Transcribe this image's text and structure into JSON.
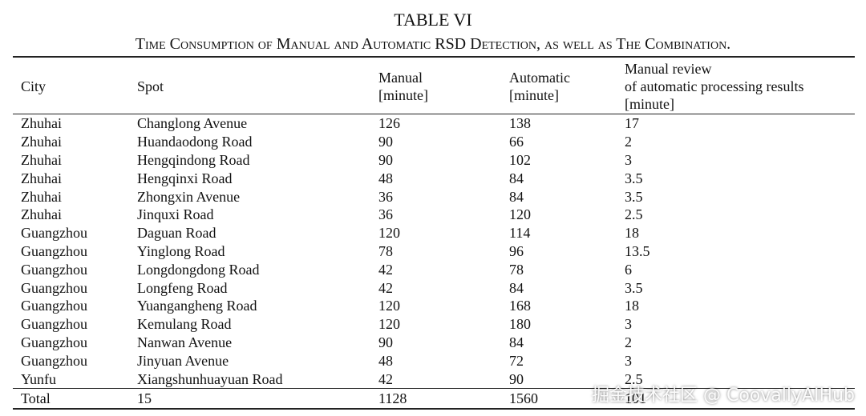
{
  "header": {
    "label": "TABLE VI",
    "caption": "Time Consumption of Manual and Automatic RSD Detection, as well as The Combination."
  },
  "table": {
    "columns": [
      "City",
      "Spot",
      "Manual\n[minute]",
      "Automatic\n[minute]",
      "Manual review\nof automatic processing results\n[minute]"
    ],
    "rows": [
      [
        "Zhuhai",
        "Changlong Avenue",
        126,
        138,
        17
      ],
      [
        "Zhuhai",
        "Huandaodong Road",
        90,
        66,
        2
      ],
      [
        "Zhuhai",
        "Hengqindong Road",
        90,
        102,
        3
      ],
      [
        "Zhuhai",
        "Hengqinxi Road",
        48,
        84,
        3.5
      ],
      [
        "Zhuhai",
        "Zhongxin Avenue",
        36,
        84,
        3.5
      ],
      [
        "Zhuhai",
        "Jinquxi Road",
        36,
        120,
        2.5
      ],
      [
        "Guangzhou",
        "Daguan Road",
        120,
        114,
        18
      ],
      [
        "Guangzhou",
        "Yinglong Road",
        78,
        96,
        13.5
      ],
      [
        "Guangzhou",
        "Longdongdong Road",
        42,
        78,
        6
      ],
      [
        "Guangzhou",
        "Longfeng Road",
        42,
        84,
        3.5
      ],
      [
        "Guangzhou",
        "Yuangangheng Road",
        120,
        168,
        18
      ],
      [
        "Guangzhou",
        "Kemulang Road",
        120,
        180,
        3
      ],
      [
        "Guangzhou",
        "Nanwan Avenue",
        90,
        84,
        2
      ],
      [
        "Guangzhou",
        "Jinyuan Avenue",
        48,
        72,
        3
      ],
      [
        "Yunfu",
        "Xiangshunhuayuan Road",
        42,
        90,
        2.5
      ]
    ],
    "total": [
      "Total",
      15,
      1128,
      1560,
      101
    ]
  },
  "watermark": "掘金技术社区 @ CoovallyAIHub"
}
